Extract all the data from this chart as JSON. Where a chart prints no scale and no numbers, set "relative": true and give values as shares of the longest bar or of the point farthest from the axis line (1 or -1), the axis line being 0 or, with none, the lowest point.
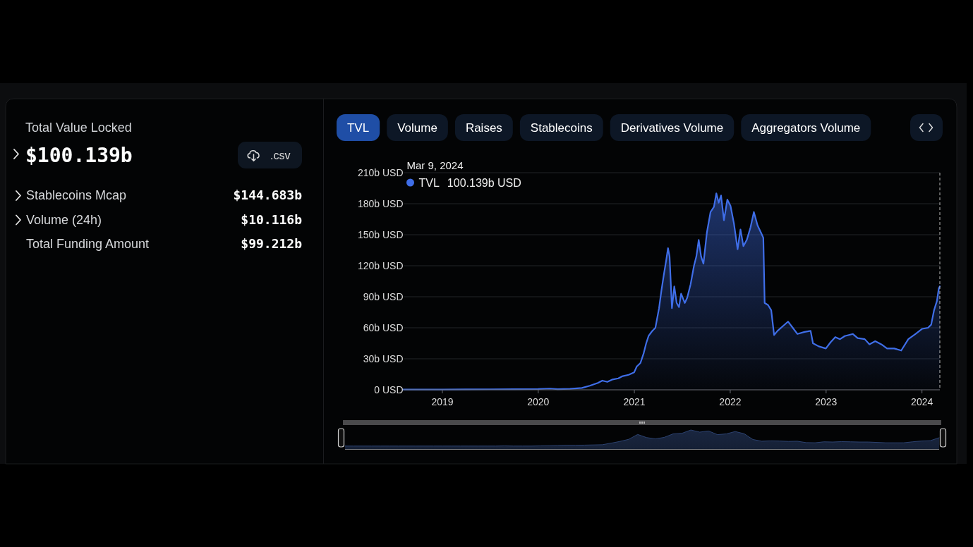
{
  "chart_data": [
    {
      "type": "other",
      "title": "Total Value Locked",
      "subtitle": "$100.139b",
      "annotations": [
        ".csv",
        "Stablecoins Mcap",
        "$144.683b",
        "Volume (24h)",
        "$10.116b",
        "Total Funding Amount",
        "$99.212b"
      ]
    },
    {
      "type": "other",
      "annotations": [
        "TVL",
        "Volume",
        "Raises",
        "Stablecoins",
        "Derivatives Volume",
        "Aggregators Volume"
      ]
    },
    {
      "type": "area",
      "x": [
        "2018-08-05",
        "2018-11-01",
        "2019-01-01",
        "2019-04-01",
        "2019-07-01",
        "2019-10-01",
        "2020-01-01",
        "2020-02-15",
        "2020-03-15",
        "2020-05-01",
        "2020-06-15",
        "2020-07-15",
        "2020-08-15",
        "2020-09-01",
        "2020-09-20",
        "2020-10-10",
        "2020-11-01",
        "2020-11-15",
        "2020-12-10",
        "2020-12-31",
        "2021-01-10",
        "2021-01-24",
        "2021-02-05",
        "2021-02-15",
        "2021-02-24",
        "2021-03-09",
        "2021-03-22",
        "2021-04-05",
        "2021-04-14",
        "2021-04-23",
        "2021-05-02",
        "2021-05-09",
        "2021-05-15",
        "2021-05-24",
        "2021-06-02",
        "2021-06-11",
        "2021-06-20",
        "2021-06-28",
        "2021-07-12",
        "2021-07-21",
        "2021-08-03",
        "2021-08-16",
        "2021-08-25",
        "2021-09-03",
        "2021-09-12",
        "2021-09-21",
        "2021-10-04",
        "2021-10-18",
        "2021-10-31",
        "2021-11-09",
        "2021-11-18",
        "2021-11-27",
        "2021-12-08",
        "2021-12-21",
        "2022-01-02",
        "2022-01-15",
        "2022-01-29",
        "2022-02-09",
        "2022-02-20",
        "2022-03-05",
        "2022-03-19",
        "2022-04-01",
        "2022-04-15",
        "2022-04-28",
        "2022-05-07",
        "2022-05-12",
        "2022-05-25",
        "2022-06-06",
        "2022-06-17",
        "2022-06-30",
        "2022-07-18",
        "2022-08-09",
        "2022-08-27",
        "2022-09-14",
        "2022-10-11",
        "2022-11-03",
        "2022-11-12",
        "2022-12-04",
        "2022-12-31",
        "2023-01-18",
        "2023-02-05",
        "2023-02-23",
        "2023-03-13",
        "2023-04-13",
        "2023-05-01",
        "2023-05-28",
        "2023-06-15",
        "2023-07-07",
        "2023-07-30",
        "2023-08-21",
        "2023-09-17",
        "2023-10-14",
        "2023-11-10",
        "2023-12-07",
        "2024-01-02",
        "2024-01-24",
        "2024-02-05",
        "2024-02-16",
        "2024-02-27",
        "2024-03-05",
        "2024-03-09"
      ],
      "series": [
        {
          "name": "TVL",
          "color": "#3f6ee8",
          "values": [
            0.2,
            0.3,
            0.3,
            0.4,
            0.5,
            0.6,
            0.7,
            1.2,
            0.6,
            0.9,
            1.8,
            3.9,
            6.6,
            8.9,
            7.7,
            10,
            11.1,
            13,
            14.5,
            16.8,
            22.5,
            25.9,
            35,
            45,
            52,
            56.6,
            60,
            79,
            96,
            111,
            125,
            137,
            129,
            79,
            100,
            84,
            80,
            93,
            84,
            89,
            102,
            120,
            129,
            145,
            129,
            122,
            152,
            172,
            177,
            190,
            181,
            188,
            164,
            184,
            178,
            161,
            136,
            155,
            139,
            145,
            157,
            172,
            159,
            152,
            147,
            84,
            82,
            77,
            53,
            57,
            61,
            66,
            60,
            54,
            56,
            57,
            45,
            42,
            40,
            46,
            51,
            49,
            52,
            54,
            50,
            49,
            44,
            47,
            44,
            40,
            40,
            38,
            49,
            54,
            59,
            60,
            63,
            77,
            86,
            98,
            100.139
          ]
        }
      ],
      "xlim": [
        "2018-08-05",
        "2024-03-09"
      ],
      "xticks": [
        "2019",
        "2020",
        "2021",
        "2022",
        "2023",
        "2024"
      ],
      "ylim": [
        0,
        210
      ],
      "yticks": [
        {
          "value": 0,
          "label": "0 USD"
        },
        {
          "value": 30,
          "label": "30b USD"
        },
        {
          "value": 60,
          "label": "60b USD"
        },
        {
          "value": 90,
          "label": "90b USD"
        },
        {
          "value": 120,
          "label": "120b USD"
        },
        {
          "value": 150,
          "label": "150b USD"
        },
        {
          "value": 180,
          "label": "180b USD"
        },
        {
          "value": 210,
          "label": "210b USD"
        }
      ],
      "grid": "y",
      "legend": "top left",
      "ref_lines": [
        {
          "axis": "x",
          "value": "2024-03-09",
          "line_style": "dashed",
          "color": "#bbbbbb"
        }
      ],
      "annotations": [
        "Mar 9, 2024",
        "100.139b USD"
      ]
    },
    {
      "type": "area",
      "relative": true,
      "categories": [
        null,
        null,
        null,
        null,
        null,
        null,
        null,
        null,
        null,
        null,
        null,
        null,
        null,
        null,
        null,
        null,
        null,
        null,
        null,
        null,
        null,
        null,
        null,
        null,
        null,
        null,
        null,
        null,
        null,
        null,
        null,
        null,
        null,
        null,
        null,
        null,
        null,
        null,
        null,
        null,
        null,
        null,
        null,
        null,
        null,
        null,
        null,
        null,
        null,
        null,
        null,
        null,
        null,
        null,
        null,
        null,
        null,
        null,
        null,
        null,
        null,
        null,
        null,
        null,
        null,
        null,
        null,
        null
      ],
      "series": [
        {
          "color": "#2c4270",
          "values": [
            0.17,
            0.17,
            0.17,
            0.17,
            0.17,
            0.17,
            0.17,
            0.17,
            0.17,
            0.17,
            0.17,
            0.17,
            0.17,
            0.17,
            0.17,
            0.17,
            0.17,
            0.17,
            0.18,
            0.17,
            0.17,
            0.17,
            0.18,
            0.19,
            0.2,
            0.21,
            0.21,
            0.22,
            0.23,
            0.24,
            0.32,
            0.41,
            0.52,
            0.77,
            0.61,
            0.54,
            0.62,
            0.8,
            0.83,
            1,
            0.89,
            0.95,
            0.76,
            0.8,
            0.92,
            0.81,
            0.51,
            0.42,
            0.44,
            0.43,
            0.41,
            0.42,
            0.35,
            0.34,
            0.39,
            0.38,
            0.4,
            0.39,
            0.38,
            0.38,
            0.36,
            0.34,
            0.34,
            0.34,
            0.39,
            0.43,
            0.45,
            0.6
          ]
        }
      ]
    }
  ]
}
